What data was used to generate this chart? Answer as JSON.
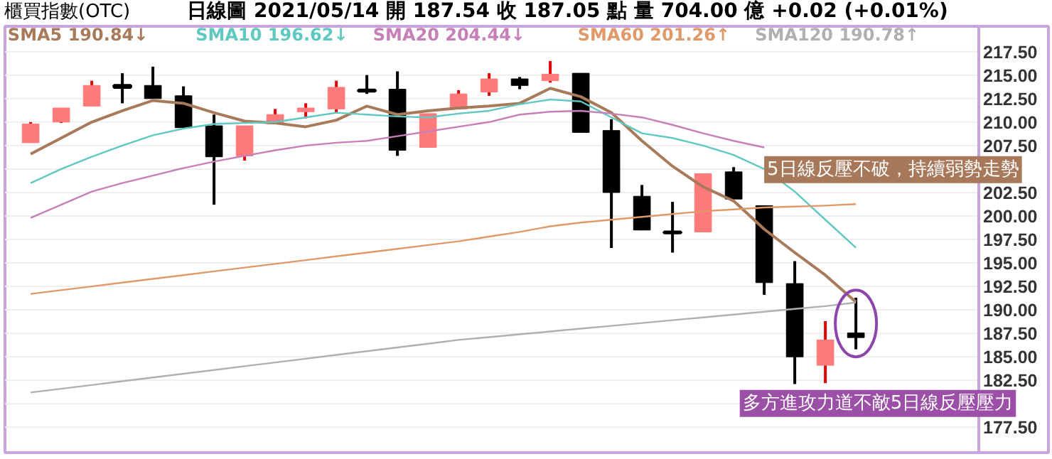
{
  "chart_data": {
    "type": "candlestick",
    "title": "櫃買指數(OTC)",
    "subtitle": "日線圖 2021/05/14 開 187.54 收 187.05 點 量 704.00 億 +0.02 (+0.01%)",
    "categories": [
      null,
      null,
      null,
      null,
      null,
      null,
      null,
      null,
      null,
      null,
      null,
      null,
      null,
      null,
      null,
      null,
      null,
      null,
      null,
      null,
      null,
      null,
      null,
      null,
      null,
      null,
      null,
      null
    ],
    "ohlc": [
      [
        207.8,
        210.0,
        207.8,
        209.8
      ],
      [
        210.0,
        211.5,
        209.9,
        211.5
      ],
      [
        211.7,
        214.4,
        211.7,
        213.9
      ],
      [
        213.9,
        215.2,
        212.0,
        213.7
      ],
      [
        213.9,
        215.9,
        212.5,
        212.5
      ],
      [
        212.8,
        213.8,
        209.4,
        209.4
      ],
      [
        209.6,
        210.8,
        201.2,
        206.3
      ],
      [
        206.4,
        209.6,
        205.9,
        209.6
      ],
      [
        209.8,
        211.4,
        209.8,
        210.8
      ],
      [
        211.1,
        212.0,
        210.4,
        211.5
      ],
      [
        211.4,
        214.4,
        211.0,
        213.7
      ],
      [
        213.4,
        215.0,
        213.0,
        213.3
      ],
      [
        213.5,
        215.4,
        206.4,
        207.0
      ],
      [
        207.3,
        210.9,
        207.3,
        210.9
      ],
      [
        211.4,
        213.4,
        211.4,
        213.0
      ],
      [
        213.2,
        215.2,
        212.8,
        214.6
      ],
      [
        214.6,
        214.8,
        213.5,
        213.9
      ],
      [
        214.4,
        216.5,
        214.2,
        215.1
      ],
      [
        215.2,
        215.2,
        208.9,
        208.9
      ],
      [
        209.1,
        210.3,
        196.6,
        202.5
      ],
      [
        202.1,
        203.3,
        198.5,
        198.5
      ],
      [
        198.3,
        201.5,
        196.1,
        198.2
      ],
      [
        198.3,
        204.5,
        198.3,
        204.5
      ],
      [
        204.7,
        205.2,
        201.8,
        201.8
      ],
      [
        201.1,
        201.1,
        191.6,
        192.9
      ],
      [
        192.8,
        195.2,
        182.1,
        185.0
      ],
      [
        184.1,
        188.8,
        182.2,
        186.8
      ],
      [
        187.54,
        191.3,
        185.8,
        187.05
      ]
    ],
    "colors": [
      "#ff7b7b",
      "#ff7b7b",
      "#ff7b7b",
      "#000000",
      "#000000",
      "#000000",
      "#000000",
      "#ff7b7b",
      "#ff7b7b",
      "#ff7b7b",
      "#ff7b7b",
      "#000000",
      "#000000",
      "#ff7b7b",
      "#ff7b7b",
      "#ff7b7b",
      "#000000",
      "#ff7b7b",
      "#000000",
      "#000000",
      "#000000",
      "#000000",
      "#ff7b7b",
      "#000000",
      "#000000",
      "#000000",
      "#ff7b7b",
      "#000000"
    ],
    "series": [
      {
        "name": "SMA5 190.84↓",
        "color": "#a97a5a",
        "type": "line",
        "values": [
          206.6,
          208.3,
          210.0,
          211.2,
          212.3,
          212.0,
          211.0,
          210.1,
          209.9,
          209.5,
          210.2,
          211.7,
          210.8,
          211.2,
          211.5,
          211.7,
          212.0,
          213.6,
          212.7,
          211.0,
          208.0,
          205.3,
          203.1,
          201.6,
          198.6,
          196.1,
          193.7,
          190.84
        ]
      },
      {
        "name": "SMA10 196.62↓",
        "color": "#5fc8c0",
        "type": "line",
        "values": [
          203.5,
          205.0,
          206.3,
          207.5,
          208.6,
          209.3,
          209.8,
          209.9,
          210.0,
          210.5,
          211.0,
          210.8,
          210.6,
          210.5,
          210.9,
          211.2,
          211.9,
          212.4,
          212.2,
          210.5,
          208.8,
          208.3,
          207.5,
          206.5,
          205.0,
          202.6,
          199.6,
          196.62
        ]
      },
      {
        "name": "SMA20 204.44↓",
        "color": "#c77fb8",
        "type": "line",
        "values": [
          199.8,
          201.2,
          202.6,
          203.5,
          204.3,
          205.1,
          205.8,
          206.4,
          207.0,
          207.5,
          207.8,
          208.0,
          208.5,
          209.0,
          209.5,
          210.0,
          210.8,
          211.1,
          211.2,
          210.9,
          210.5,
          209.7,
          208.8,
          208.0,
          207.3,
          null,
          null,
          null
        ]
      },
      {
        "name": "SMA60 201.26↑",
        "color": "#e09a6a",
        "type": "line",
        "values": [
          191.7,
          192.1,
          192.5,
          192.9,
          193.3,
          193.7,
          194.1,
          194.5,
          194.9,
          195.3,
          195.7,
          196.1,
          196.5,
          196.9,
          197.3,
          197.8,
          198.3,
          198.9,
          199.3,
          199.6,
          199.9,
          200.2,
          200.5,
          200.7,
          200.9,
          201.0,
          201.1,
          201.26
        ]
      },
      {
        "name": "SMA120 190.78↑",
        "color": "#b0b0b0",
        "type": "line",
        "values": [
          181.2,
          181.6,
          182.0,
          182.4,
          182.8,
          183.2,
          183.6,
          184.0,
          184.4,
          184.8,
          185.2,
          185.6,
          186.0,
          186.4,
          186.8,
          187.1,
          187.4,
          187.7,
          188.0,
          188.3,
          188.6,
          188.9,
          189.2,
          189.5,
          189.8,
          190.1,
          190.4,
          190.78
        ]
      }
    ],
    "ylim": [
      174.8,
      220.2
    ],
    "yticks": [
      {
        "value": 177.5,
        "label": "177.50"
      },
      {
        "value": 180,
        "label": null
      },
      {
        "value": 182.5,
        "label": "182.50"
      },
      {
        "value": 185,
        "label": "185.00"
      },
      {
        "value": 187.5,
        "label": "187.50"
      },
      {
        "value": 190,
        "label": "190.00"
      },
      {
        "value": 192.5,
        "label": "192.50"
      },
      {
        "value": 195,
        "label": "195.00"
      },
      {
        "value": 197.5,
        "label": "197.50"
      },
      {
        "value": 200,
        "label": "200.00"
      },
      {
        "value": 202.5,
        "label": "202.50"
      },
      {
        "value": 205,
        "label": null
      },
      {
        "value": 207.5,
        "label": "207.50"
      },
      {
        "value": 210,
        "label": "210.00"
      },
      {
        "value": 212.5,
        "label": "212.50"
      },
      {
        "value": 215,
        "label": "215.00"
      },
      {
        "value": 217.5,
        "label": "217.50"
      }
    ],
    "grid": "y",
    "legend": "top left",
    "tick_labels": "y",
    "annotations": [
      "5日線反壓不破，持續弱勢走勢",
      "多方進攻力道不敵5日線反壓壓力"
    ]
  }
}
